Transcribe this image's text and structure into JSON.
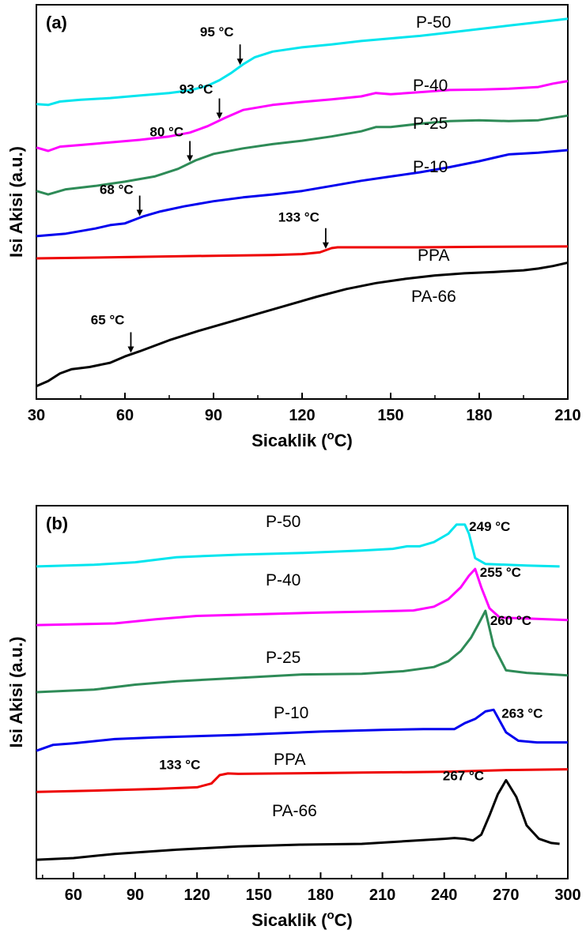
{
  "chart_data": [
    {
      "type": "line",
      "panel_label": "(a)",
      "xlabel": "Sicaklik (",
      "xlabel_sup": "o",
      "xlabel_tail": "C)",
      "ylabel": "Isi Akisi (a.u.)",
      "xlim": [
        30,
        210
      ],
      "xticks": [
        30,
        60,
        90,
        120,
        150,
        180,
        210
      ],
      "xtick_labels": [
        "30",
        "60",
        "90",
        "120",
        "150",
        "180",
        "210"
      ],
      "y_units": "arbitrary (offset traces)",
      "series": [
        {
          "name": "P-50",
          "color": "#00e5ee",
          "x": [
            30,
            34,
            38,
            45,
            55,
            65,
            75,
            82,
            88,
            92,
            96,
            100,
            104,
            110,
            120,
            130,
            140,
            150,
            160,
            170,
            180,
            190,
            200,
            210
          ],
          "y": [
            6.62,
            6.6,
            6.68,
            6.72,
            6.76,
            6.82,
            6.88,
            6.94,
            7.05,
            7.18,
            7.35,
            7.55,
            7.72,
            7.85,
            7.95,
            8.02,
            8.1,
            8.16,
            8.22,
            8.3,
            8.38,
            8.46,
            8.54,
            8.62
          ]
        },
        {
          "name": "P-40",
          "color": "#ff00ff",
          "x": [
            30,
            34,
            38,
            45,
            55,
            65,
            75,
            82,
            88,
            94,
            100,
            110,
            120,
            130,
            140,
            145,
            150,
            160,
            170,
            180,
            190,
            200,
            205,
            210
          ],
          "y": [
            5.6,
            5.52,
            5.62,
            5.66,
            5.72,
            5.78,
            5.86,
            5.95,
            6.1,
            6.3,
            6.48,
            6.6,
            6.67,
            6.73,
            6.8,
            6.88,
            6.85,
            6.9,
            6.95,
            6.96,
            6.98,
            7.02,
            7.1,
            7.16
          ]
        },
        {
          "name": "P-25",
          "color": "#2e8b57",
          "x": [
            30,
            34,
            40,
            50,
            60,
            70,
            78,
            84,
            90,
            100,
            110,
            120,
            130,
            140,
            145,
            150,
            160,
            170,
            180,
            190,
            200,
            210
          ],
          "y": [
            4.58,
            4.5,
            4.62,
            4.7,
            4.8,
            4.92,
            5.1,
            5.3,
            5.45,
            5.58,
            5.68,
            5.76,
            5.86,
            5.98,
            6.08,
            6.08,
            6.16,
            6.22,
            6.24,
            6.22,
            6.24,
            6.35
          ]
        },
        {
          "name": "P-10",
          "color": "#0000ee",
          "x": [
            30,
            40,
            50,
            55,
            60,
            66,
            72,
            80,
            90,
            100,
            110,
            120,
            130,
            140,
            150,
            160,
            170,
            180,
            190,
            200,
            210
          ],
          "y": [
            3.52,
            3.58,
            3.7,
            3.78,
            3.82,
            3.98,
            4.1,
            4.22,
            4.34,
            4.43,
            4.5,
            4.58,
            4.7,
            4.82,
            4.92,
            5.02,
            5.14,
            5.28,
            5.44,
            5.48,
            5.54
          ]
        },
        {
          "name": "PPA",
          "color": "#ee0000",
          "x": [
            30,
            60,
            90,
            110,
            120,
            126,
            130,
            132,
            140,
            150,
            160,
            180,
            210
          ],
          "y": [
            3.0,
            3.03,
            3.06,
            3.08,
            3.1,
            3.14,
            3.24,
            3.26,
            3.26,
            3.26,
            3.26,
            3.27,
            3.28
          ]
        },
        {
          "name": "PA-66",
          "color": "#000000",
          "x": [
            30,
            34,
            38,
            42,
            48,
            55,
            60,
            65,
            75,
            85,
            95,
            105,
            115,
            125,
            135,
            145,
            155,
            165,
            175,
            185,
            195,
            200,
            205,
            210
          ],
          "y": [
            0.0,
            0.12,
            0.3,
            0.4,
            0.45,
            0.55,
            0.7,
            0.82,
            1.08,
            1.3,
            1.5,
            1.7,
            1.9,
            2.1,
            2.28,
            2.42,
            2.52,
            2.6,
            2.65,
            2.68,
            2.72,
            2.76,
            2.82,
            2.9
          ]
        }
      ],
      "annotations": [
        {
          "text": "95 °C",
          "x": 99,
          "series": "P-50"
        },
        {
          "text": "93 °C",
          "x": 92,
          "series": "P-40"
        },
        {
          "text": "80 °C",
          "x": 82,
          "series": "P-25"
        },
        {
          "text": "68 °C",
          "x": 65,
          "series": "P-10"
        },
        {
          "text": "133 °C",
          "x": 128,
          "series": "PPA"
        },
        {
          "text": "65 °C",
          "x": 62,
          "series": "PA-66"
        }
      ]
    },
    {
      "type": "line",
      "panel_label": "(b)",
      "xlabel": "Sicaklik (",
      "xlabel_sup": "o",
      "xlabel_tail": "C)",
      "ylabel": "Isi Akisi (a.u.)",
      "xlim": [
        42,
        300
      ],
      "xticks": [
        60,
        90,
        120,
        150,
        180,
        210,
        240,
        270,
        300
      ],
      "xtick_labels": [
        "60",
        "90",
        "120",
        "150",
        "180",
        "210",
        "240",
        "270",
        "300"
      ],
      "y_units": "arbitrary (offset traces)",
      "series": [
        {
          "name": "P-50",
          "color": "#00e5ee",
          "x": [
            42,
            70,
            90,
            110,
            140,
            170,
            200,
            215,
            222,
            228,
            235,
            242,
            246,
            248,
            250,
            252,
            255,
            260,
            280,
            296
          ],
          "y": [
            6.4,
            6.44,
            6.5,
            6.62,
            6.68,
            6.72,
            6.78,
            6.82,
            6.88,
            6.88,
            6.98,
            7.18,
            7.4,
            7.4,
            7.4,
            7.18,
            6.6,
            6.46,
            6.42,
            6.4
          ]
        },
        {
          "name": "P-40",
          "color": "#ff00ff",
          "x": [
            42,
            80,
            100,
            120,
            150,
            180,
            210,
            225,
            235,
            242,
            248,
            252,
            255,
            258,
            262,
            267,
            280,
            300
          ],
          "y": [
            5.0,
            5.04,
            5.14,
            5.22,
            5.26,
            5.3,
            5.33,
            5.35,
            5.44,
            5.62,
            5.9,
            6.18,
            6.34,
            5.9,
            5.4,
            5.18,
            5.16,
            5.12
          ]
        },
        {
          "name": "P-25",
          "color": "#2e8b57",
          "x": [
            42,
            70,
            90,
            110,
            140,
            170,
            200,
            220,
            235,
            242,
            248,
            253,
            257,
            260,
            264,
            270,
            280,
            300
          ],
          "y": [
            3.4,
            3.46,
            3.58,
            3.66,
            3.74,
            3.82,
            3.84,
            3.9,
            4.0,
            4.14,
            4.38,
            4.7,
            5.06,
            5.34,
            4.5,
            3.92,
            3.86,
            3.8
          ]
        },
        {
          "name": "P-10",
          "color": "#0000ee",
          "x": [
            42,
            50,
            60,
            80,
            100,
            140,
            180,
            210,
            230,
            245,
            250,
            255,
            260,
            264,
            270,
            276,
            285,
            300
          ],
          "y": [
            2.0,
            2.14,
            2.18,
            2.28,
            2.32,
            2.38,
            2.46,
            2.5,
            2.52,
            2.52,
            2.66,
            2.76,
            2.94,
            2.98,
            2.44,
            2.24,
            2.2,
            2.2
          ]
        },
        {
          "name": "PPA",
          "color": "#ee0000",
          "x": [
            42,
            70,
            100,
            120,
            127,
            131,
            135,
            140,
            160,
            200,
            240,
            270,
            300
          ],
          "y": [
            1.02,
            1.05,
            1.09,
            1.13,
            1.22,
            1.42,
            1.46,
            1.45,
            1.46,
            1.48,
            1.5,
            1.54,
            1.56
          ]
        },
        {
          "name": "PA-66",
          "color": "#000000",
          "x": [
            42,
            60,
            80,
            110,
            140,
            170,
            200,
            220,
            240,
            245,
            250,
            254,
            258,
            262,
            266,
            270,
            275,
            280,
            286,
            292,
            296
          ],
          "y": [
            -0.6,
            -0.56,
            -0.46,
            -0.36,
            -0.28,
            -0.24,
            -0.22,
            -0.16,
            -0.1,
            -0.08,
            -0.1,
            -0.14,
            0.0,
            0.46,
            0.96,
            1.3,
            0.9,
            0.22,
            -0.1,
            -0.2,
            -0.22
          ]
        }
      ],
      "annotations": [
        {
          "text": "249 °C",
          "x": 249,
          "series": "P-50"
        },
        {
          "text": "255 °C",
          "x": 255,
          "series": "P-40"
        },
        {
          "text": "260 °C",
          "x": 260,
          "series": "P-25"
        },
        {
          "text": "263 °C",
          "x": 264,
          "series": "P-10"
        },
        {
          "text": "133 °C",
          "x": 130,
          "series": "PPA"
        },
        {
          "text": "267 °C",
          "x": 270,
          "series": "PA-66"
        }
      ]
    }
  ]
}
